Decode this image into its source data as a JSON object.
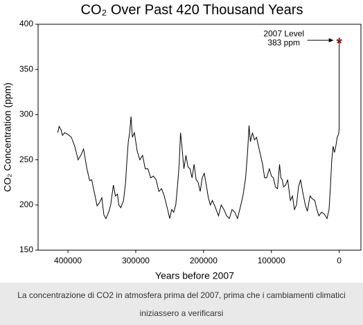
{
  "chart_data": {
    "type": "line",
    "title": "CO₂ Over Past 420 Thousand Years",
    "x_label": "Years before 2007",
    "y_label": "CO₂ Concentration (ppm)",
    "annotation": [
      "2007 Level",
      "383 ppm"
    ],
    "x": [
      415000,
      413000,
      410000,
      408000,
      405000,
      400000,
      395000,
      390000,
      385000,
      381000,
      377000,
      372000,
      368000,
      365000,
      360000,
      357000,
      354000,
      350000,
      347000,
      344000,
      340000,
      337000,
      333000,
      330000,
      327000,
      325000,
      322000,
      318000,
      315000,
      313000,
      311000,
      309000,
      307000,
      305000,
      302000,
      298000,
      294000,
      290000,
      286000,
      282000,
      278000,
      274000,
      270000,
      266000,
      262000,
      258000,
      253000,
      250000,
      247000,
      244000,
      241000,
      238000,
      236000,
      234000,
      232000,
      229000,
      226000,
      223000,
      220000,
      217000,
      214000,
      211000,
      208000,
      205000,
      202000,
      199000,
      196000,
      193000,
      190000,
      187000,
      183000,
      178000,
      174000,
      170000,
      166000,
      162000,
      158000,
      154000,
      150000,
      146000,
      142000,
      138000,
      135000,
      133000,
      131000,
      128000,
      125000,
      122000,
      119000,
      116000,
      113000,
      110000,
      107000,
      103000,
      100000,
      97000,
      94000,
      91000,
      88000,
      86000,
      84000,
      82000,
      79000,
      76000,
      72000,
      69000,
      66000,
      63000,
      60000,
      57000,
      54000,
      50000,
      47000,
      43000,
      40000,
      36000,
      33000,
      30000,
      26000,
      22000,
      18000,
      15000,
      13000,
      11000,
      9000,
      7000,
      5000,
      3000,
      1000,
      0,
      0
    ],
    "series": [
      {
        "color": "#000000",
        "marker_color": "#8b1a1a",
        "values": [
          280,
          287,
          283,
          277,
          280,
          278,
          275,
          265,
          250,
          255,
          262,
          240,
          227,
          228,
          210,
          199,
          202,
          208,
          189,
          185,
          192,
          200,
          222,
          210,
          212,
          200,
          197,
          205,
          225,
          250,
          270,
          280,
          298,
          275,
          280,
          260,
          250,
          255,
          240,
          240,
          230,
          232,
          228,
          215,
          218,
          210,
          195,
          185,
          195,
          192,
          200,
          225,
          245,
          280,
          265,
          240,
          255,
          242,
          240,
          230,
          245,
          228,
          225,
          215,
          230,
          235,
          222,
          208,
          200,
          205,
          198,
          188,
          200,
          195,
          188,
          185,
          195,
          192,
          185,
          197,
          210,
          230,
          260,
          288,
          270,
          280,
          272,
          275,
          265,
          255,
          245,
          230,
          230,
          240,
          232,
          230,
          220,
          218,
          245,
          230,
          228,
          220,
          222,
          228,
          205,
          210,
          195,
          200,
          220,
          228,
          215,
          200,
          193,
          210,
          207,
          205,
          195,
          188,
          192,
          190,
          185,
          195,
          220,
          250,
          265,
          258,
          265,
          275,
          278,
          285,
          383
        ]
      }
    ],
    "xlim": [
      444000,
      -32000
    ],
    "xticks": [
      400000,
      300000,
      200000,
      100000,
      0
    ],
    "ylim": [
      150,
      400
    ],
    "yticks": [
      150,
      200,
      250,
      300,
      350,
      400
    ]
  },
  "caption": "La concentrazione di CO2 in atmosfera prima del 2007, prima che i cambiamenti climatici iniziassero a verificarsi"
}
